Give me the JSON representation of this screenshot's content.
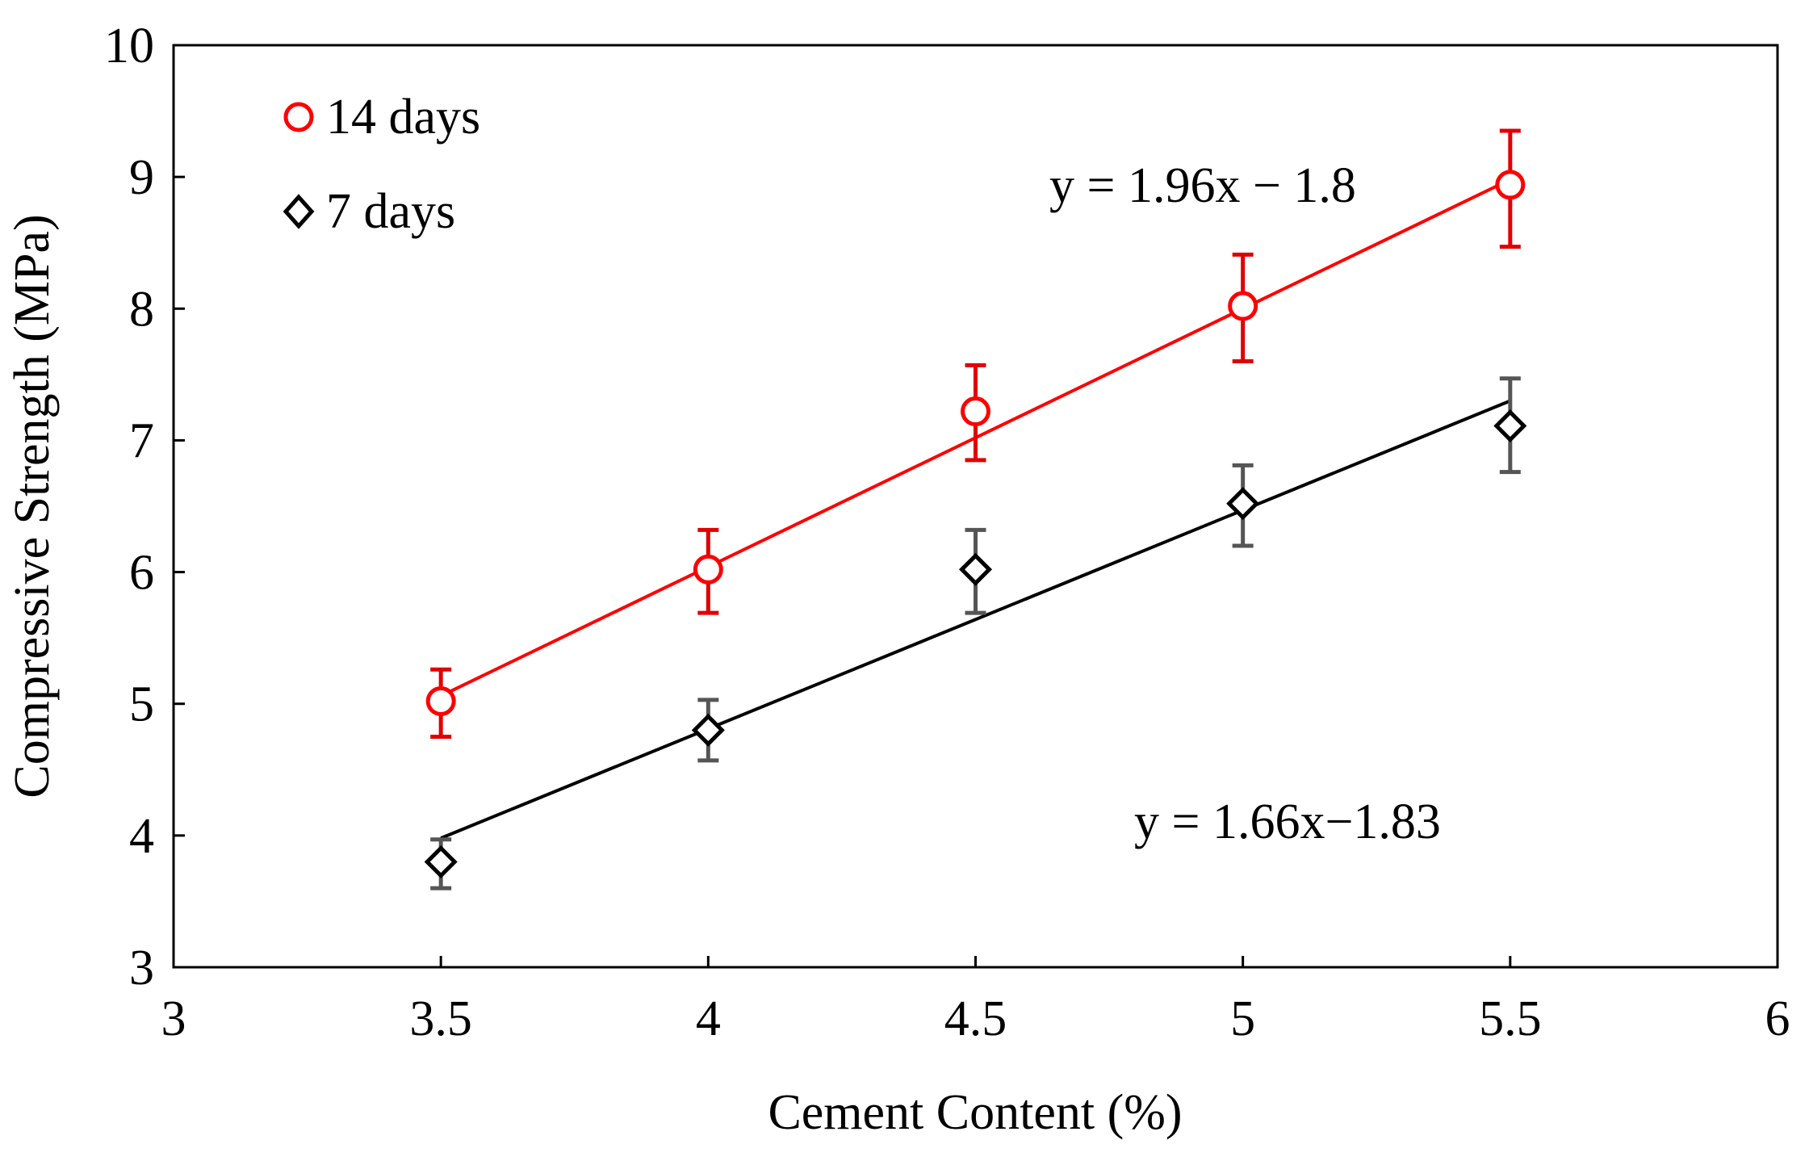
{
  "chart_data": {
    "type": "scatter",
    "title": "",
    "xlabel": "Cement Content (%)",
    "ylabel": "Compressive Strength (MPa)",
    "xlim": [
      3,
      6
    ],
    "ylim": [
      3,
      10
    ],
    "xticks": [
      3,
      3.5,
      4,
      4.5,
      5,
      5.5,
      6
    ],
    "xtick_labels": [
      "3",
      "3.5",
      "4",
      "4.5",
      "5",
      "5.5",
      "6"
    ],
    "yticks": [
      3,
      4,
      5,
      6,
      7,
      8,
      9,
      10
    ],
    "ytick_labels": [
      "3",
      "4",
      "5",
      "6",
      "7",
      "8",
      "9",
      "10"
    ],
    "grid": false,
    "legend_position": "top-left",
    "series": [
      {
        "name": "14 days",
        "marker": "circle",
        "color": "#ff0000",
        "errorbar_color": "#e00000",
        "x": [
          3.5,
          4,
          4.5,
          5,
          5.5
        ],
        "y": [
          5.02,
          6.02,
          7.22,
          8.02,
          8.94
        ],
        "err_low": [
          4.75,
          5.69,
          6.85,
          7.6,
          8.47
        ],
        "err_high": [
          5.26,
          6.32,
          7.57,
          8.41,
          9.35
        ],
        "trendline": {
          "slope": 1.96,
          "intercept": -1.8,
          "x_range": [
            3.5,
            5.5
          ]
        },
        "equation": "y = 1.96x − 1.8"
      },
      {
        "name": "7 days",
        "marker": "diamond",
        "color": "#000000",
        "errorbar_color": "#555555",
        "x": [
          3.5,
          4,
          4.5,
          5,
          5.5
        ],
        "y": [
          3.8,
          4.8,
          6.02,
          6.52,
          7.11
        ],
        "err_low": [
          3.6,
          4.57,
          5.69,
          6.2,
          6.76
        ],
        "err_high": [
          3.97,
          5.03,
          6.32,
          6.81,
          7.47
        ],
        "trendline": {
          "slope": 1.66,
          "intercept": -1.83,
          "x_range": [
            3.5,
            5.5
          ]
        },
        "equation": "y = 1.66x−1.83"
      }
    ]
  }
}
